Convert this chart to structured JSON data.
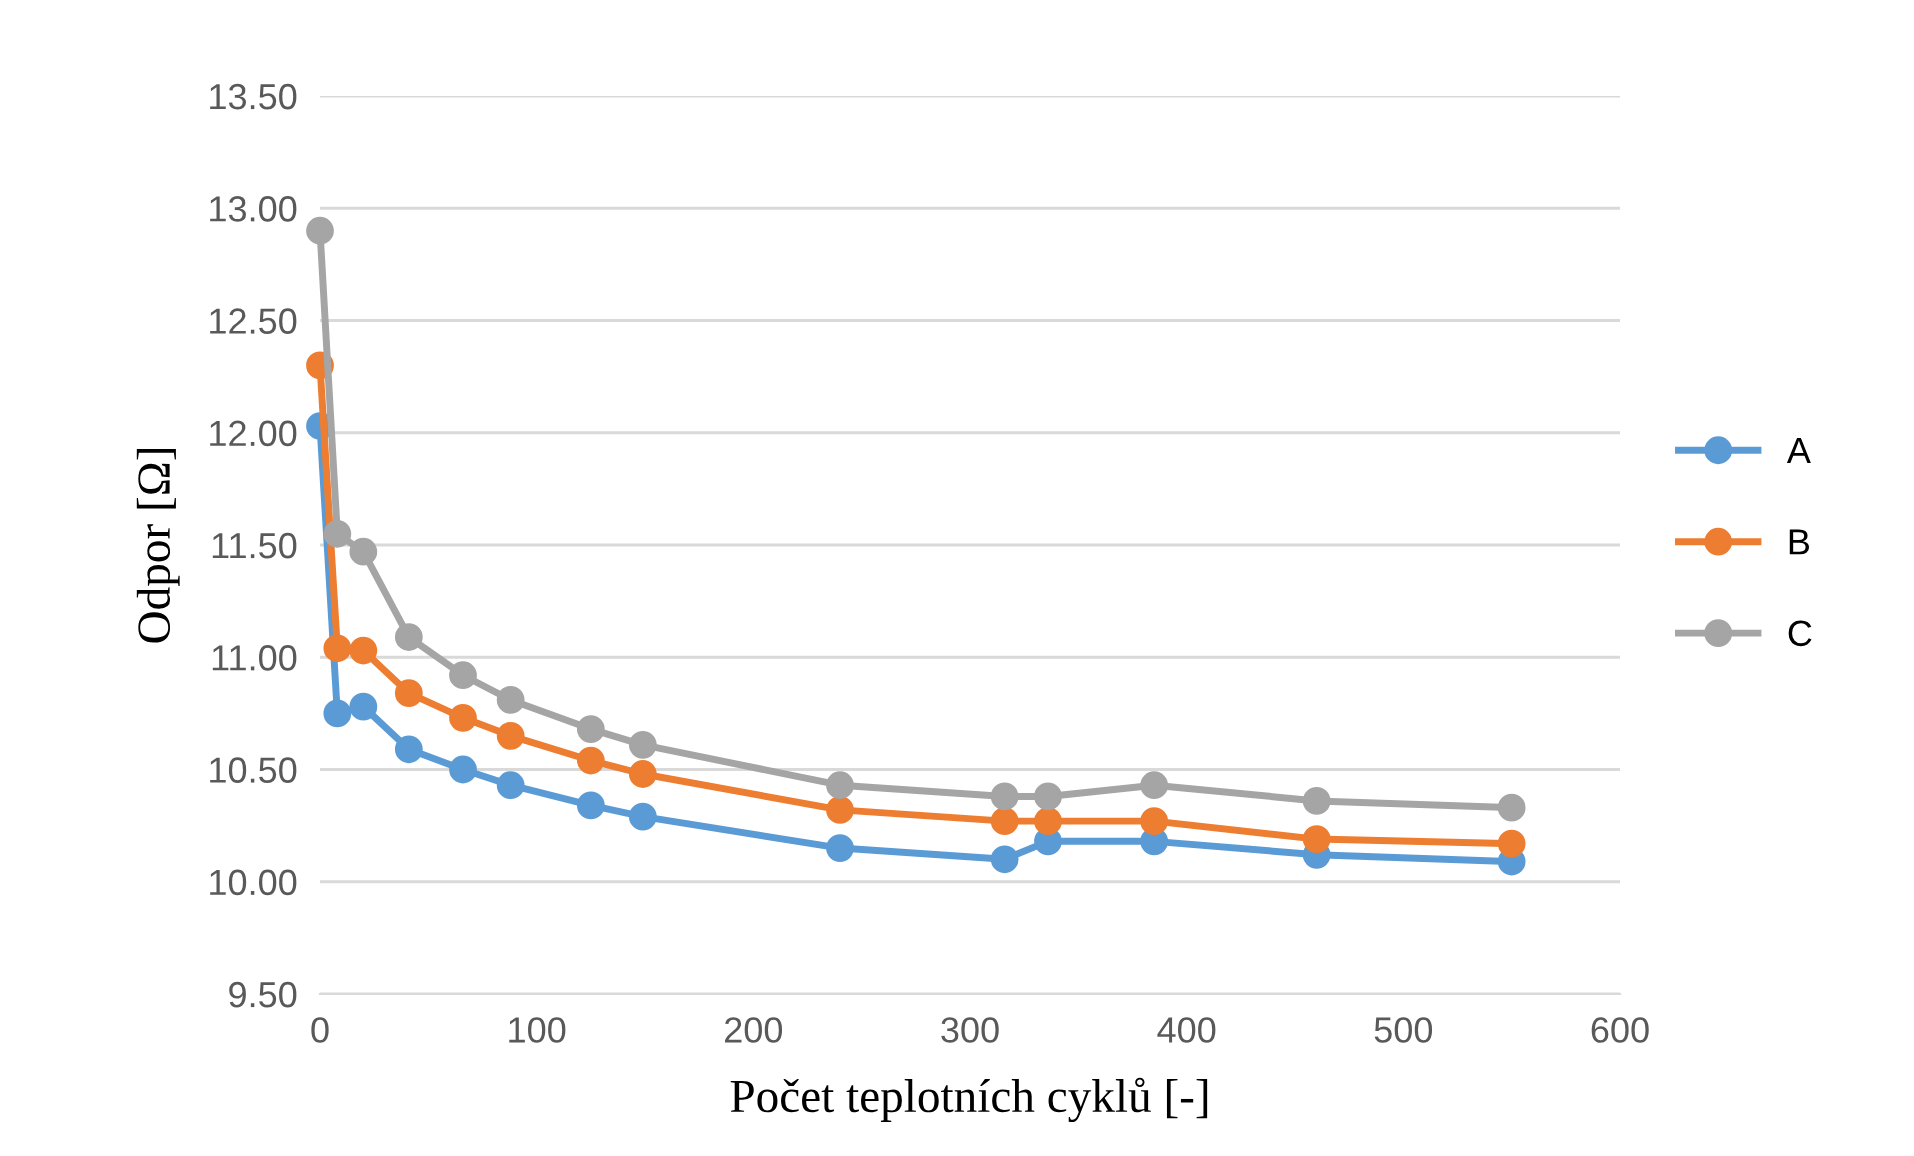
{
  "chart_data": {
    "type": "line",
    "xlabel": "Počet teplotních cyklů [-]",
    "ylabel": "Odpor [Ω]",
    "x": [
      0,
      8,
      20,
      41,
      66,
      88,
      125,
      149,
      240,
      316,
      336,
      385,
      460,
      550
    ],
    "series": [
      {
        "name": "A",
        "color": "#5b9bd5",
        "values": [
          12.03,
          10.75,
          10.78,
          10.59,
          10.5,
          10.43,
          10.34,
          10.29,
          10.15,
          10.1,
          10.18,
          10.18,
          10.12,
          10.09
        ]
      },
      {
        "name": "B",
        "color": "#ed7d31",
        "values": [
          12.3,
          11.04,
          11.03,
          10.84,
          10.73,
          10.65,
          10.54,
          10.48,
          10.32,
          10.27,
          10.27,
          10.27,
          10.19,
          10.17
        ]
      },
      {
        "name": "C",
        "color": "#a5a5a5",
        "values": [
          12.9,
          11.55,
          11.47,
          11.09,
          10.92,
          10.81,
          10.68,
          10.61,
          10.43,
          10.38,
          10.38,
          10.43,
          10.36,
          10.33
        ]
      }
    ],
    "xlim": [
      0,
      600
    ],
    "xticks": [
      0,
      100,
      200,
      300,
      400,
      500,
      600
    ],
    "ylim": [
      9.5,
      13.5
    ],
    "yticks": [
      {
        "value": 9.5,
        "label": "9.50"
      },
      {
        "value": 10,
        "label": "10.00"
      },
      {
        "value": 10.5,
        "label": "10.50"
      },
      {
        "value": 11,
        "label": "11.00"
      },
      {
        "value": 11.5,
        "label": "11.50"
      },
      {
        "value": 12,
        "label": "12.00"
      },
      {
        "value": 12.5,
        "label": "12.50"
      },
      {
        "value": 13,
        "label": "13.00"
      },
      {
        "value": 13.5,
        "label": "13.50"
      }
    ],
    "grid": "y",
    "legend": "right",
    "marker": "circle",
    "line_style": "solid"
  }
}
